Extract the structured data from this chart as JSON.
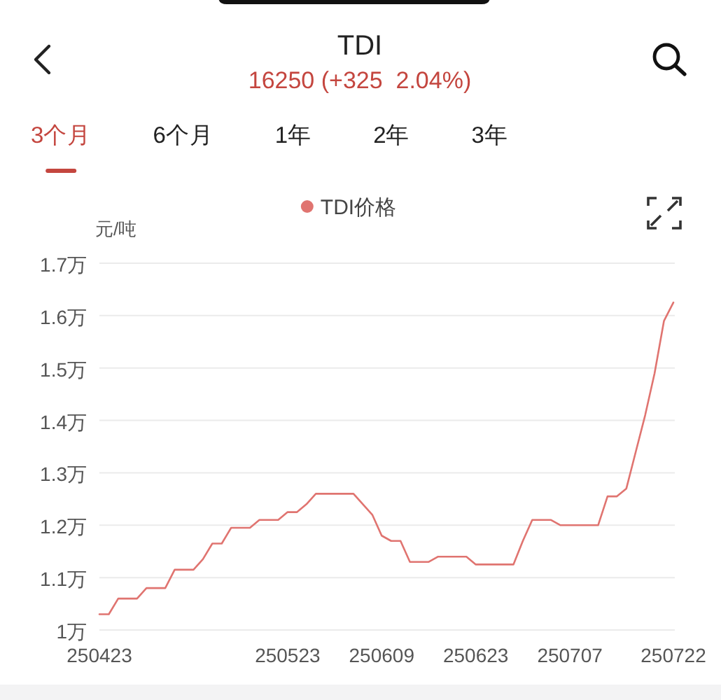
{
  "chart_data": {
    "type": "line",
    "title": "TDI",
    "subtitle": "16250 (+325  2.04%)",
    "annotations": [
      "3个月",
      "6个月",
      "1年",
      "2年",
      "3年"
    ],
    "ylabel": "元/吨",
    "categories": [
      "250423",
      null,
      null,
      null,
      null,
      null,
      null,
      null,
      null,
      null,
      null,
      null,
      null,
      null,
      null,
      null,
      null,
      null,
      null,
      null,
      "250523",
      null,
      null,
      null,
      null,
      null,
      null,
      null,
      null,
      null,
      "250609",
      null,
      null,
      null,
      null,
      null,
      null,
      null,
      null,
      null,
      "250623",
      null,
      null,
      null,
      null,
      null,
      null,
      null,
      null,
      null,
      "250707",
      null,
      null,
      null,
      null,
      null,
      null,
      null,
      null,
      null,
      null,
      "250722"
    ],
    "series": [
      {
        "name": "TDI价格",
        "color": "#e07470",
        "values": [
          1.03,
          1.03,
          1.06,
          1.06,
          1.06,
          1.08,
          1.08,
          1.08,
          1.115,
          1.115,
          1.115,
          1.135,
          1.165,
          1.165,
          1.195,
          1.195,
          1.195,
          1.21,
          1.21,
          1.21,
          1.225,
          1.225,
          1.24,
          1.26,
          1.26,
          1.26,
          1.26,
          1.26,
          1.24,
          1.22,
          1.18,
          1.17,
          1.17,
          1.13,
          1.13,
          1.13,
          1.14,
          1.14,
          1.14,
          1.14,
          1.125,
          1.125,
          1.125,
          1.125,
          1.125,
          1.17,
          1.21,
          1.21,
          1.21,
          1.2,
          1.2,
          1.2,
          1.2,
          1.2,
          1.255,
          1.255,
          1.27,
          1.34,
          1.41,
          1.49,
          1.59,
          1.625
        ]
      }
    ],
    "ylim": [
      1,
      1.7
    ],
    "yticks": [
      {
        "value": 1,
        "label": "1万"
      },
      {
        "value": 1.1,
        "label": "1.1万"
      },
      {
        "value": 1.2,
        "label": "1.2万"
      },
      {
        "value": 1.3,
        "label": "1.3万"
      },
      {
        "value": 1.4,
        "label": "1.4万"
      },
      {
        "value": 1.5,
        "label": "1.5万"
      },
      {
        "value": 1.6,
        "label": "1.6万"
      },
      {
        "value": 1.7,
        "label": "1.7万"
      }
    ],
    "grid": "y",
    "legend": "top"
  }
}
